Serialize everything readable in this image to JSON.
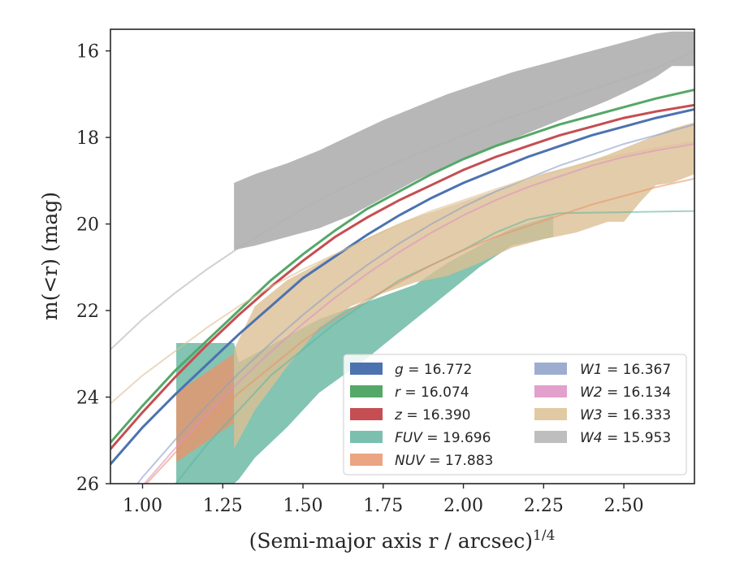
{
  "chart_data": {
    "type": "line",
    "xlabel": "(Semi-major axis r / arcsec)",
    "xlabel_exponent": "1/4",
    "ylabel": "m(<r) (mag)",
    "xlim": [
      0.9,
      2.72
    ],
    "ylim": [
      26,
      15.5
    ],
    "y_inverted": true,
    "grid": false,
    "legend_position": "lower-right",
    "xticks": [
      "1.00",
      "1.25",
      "1.50",
      "1.75",
      "2.00",
      "2.25",
      "2.50"
    ],
    "yticks": [
      "16",
      "18",
      "20",
      "22",
      "24",
      "26"
    ],
    "series": [
      {
        "name": "g = 16.772",
        "band": "g",
        "value": "16.772",
        "color": "#4c72b0",
        "x": [
          0.9,
          1.0,
          1.1,
          1.2,
          1.3,
          1.4,
          1.5,
          1.6,
          1.7,
          1.8,
          1.9,
          2.0,
          2.1,
          2.2,
          2.3,
          2.4,
          2.5,
          2.6,
          2.72
        ],
        "y": [
          25.55,
          24.7,
          23.95,
          23.25,
          22.55,
          21.9,
          21.25,
          20.75,
          20.25,
          19.8,
          19.4,
          19.05,
          18.75,
          18.45,
          18.2,
          17.95,
          17.75,
          17.55,
          17.35
        ],
        "band_x": [],
        "band_lo": [],
        "band_hi": []
      },
      {
        "name": "r = 16.074",
        "band": "r",
        "value": "16.074",
        "color": "#55a868",
        "x": [
          0.9,
          1.0,
          1.1,
          1.2,
          1.3,
          1.4,
          1.5,
          1.6,
          1.7,
          1.8,
          1.9,
          2.0,
          2.1,
          2.2,
          2.3,
          2.4,
          2.5,
          2.6,
          2.72
        ],
        "y": [
          25.05,
          24.2,
          23.4,
          22.7,
          22.0,
          21.3,
          20.7,
          20.15,
          19.65,
          19.25,
          18.85,
          18.5,
          18.2,
          17.95,
          17.7,
          17.5,
          17.3,
          17.1,
          16.9
        ],
        "band_x": [],
        "band_lo": [],
        "band_hi": []
      },
      {
        "name": "z = 16.390",
        "band": "z",
        "value": "16.390",
        "color": "#c44e52",
        "x": [
          0.9,
          1.0,
          1.1,
          1.2,
          1.3,
          1.4,
          1.5,
          1.6,
          1.7,
          1.8,
          1.9,
          2.0,
          2.1,
          2.2,
          2.3,
          2.4,
          2.5,
          2.6,
          2.72
        ],
        "y": [
          25.2,
          24.35,
          23.55,
          22.8,
          22.1,
          21.45,
          20.85,
          20.3,
          19.85,
          19.45,
          19.1,
          18.75,
          18.45,
          18.2,
          17.95,
          17.75,
          17.55,
          17.4,
          17.25
        ],
        "band_x": [],
        "band_lo": [],
        "band_hi": []
      },
      {
        "name": "FUV = 19.696",
        "band": "FUV",
        "value": "19.696",
        "color": "#64b5a0",
        "x": [
          1.05,
          1.2,
          1.4,
          1.6,
          1.8,
          2.0,
          2.1,
          2.2,
          2.3,
          2.72
        ],
        "y": [
          26.5,
          25.1,
          23.5,
          22.3,
          21.3,
          20.6,
          20.2,
          19.9,
          19.75,
          19.7
        ],
        "band_x": [
          1.105,
          1.285,
          1.3,
          1.35,
          1.45,
          1.55,
          1.7,
          1.85,
          1.95,
          2.05,
          2.15,
          2.28
        ],
        "band_lo": [
          26.0,
          26.0,
          25.9,
          25.4,
          24.7,
          23.9,
          23.1,
          22.2,
          21.6,
          21.0,
          20.5,
          20.3
        ],
        "band_hi": [
          22.75,
          22.75,
          23.2,
          23.0,
          22.6,
          22.2,
          21.8,
          21.4,
          20.9,
          20.5,
          20.1,
          19.8
        ]
      },
      {
        "name": "NUV = 17.883",
        "band": "NUV",
        "value": "17.883",
        "color": "#e8956c",
        "x": [
          0.9,
          1.0,
          1.1,
          1.2,
          1.3,
          1.4,
          1.5,
          1.6,
          1.7,
          1.8,
          1.9,
          2.0,
          2.1,
          2.2,
          2.3,
          2.4,
          2.5,
          2.6,
          2.72
        ],
        "y": [
          27.0,
          26.1,
          25.3,
          24.6,
          23.9,
          23.3,
          22.7,
          22.2,
          21.75,
          21.35,
          20.95,
          20.6,
          20.3,
          20.05,
          19.8,
          19.55,
          19.35,
          19.15,
          18.95
        ],
        "band_x": [
          1.105,
          1.285
        ],
        "band_lo": [
          25.5,
          24.6
        ],
        "band_hi": [
          23.9,
          23.0
        ]
      },
      {
        "name": "W1 = 16.367",
        "band": "W1",
        "value": "16.367",
        "color": "#8c9fc8",
        "x": [
          0.9,
          1.0,
          1.1,
          1.2,
          1.3,
          1.4,
          1.5,
          1.6,
          1.7,
          1.8,
          1.9,
          2.0,
          2.1,
          2.2,
          2.3,
          2.4,
          2.5,
          2.6,
          2.72
        ],
        "y": [
          26.8,
          25.85,
          25.0,
          24.2,
          23.45,
          22.75,
          22.1,
          21.5,
          20.95,
          20.45,
          20.0,
          19.6,
          19.25,
          18.95,
          18.65,
          18.4,
          18.15,
          17.95,
          17.7
        ],
        "band_x": [],
        "band_lo": [],
        "band_hi": []
      },
      {
        "name": "W2 = 16.134",
        "band": "W2",
        "value": "16.134",
        "color": "#dd8fc4",
        "x": [
          0.9,
          1.0,
          1.1,
          1.2,
          1.3,
          1.4,
          1.5,
          1.6,
          1.7,
          1.8,
          1.9,
          2.0,
          2.1,
          2.2,
          2.3,
          2.4,
          2.5,
          2.6,
          2.72
        ],
        "y": [
          27.0,
          26.05,
          25.2,
          24.4,
          23.65,
          22.95,
          22.3,
          21.7,
          21.15,
          20.65,
          20.2,
          19.8,
          19.45,
          19.15,
          18.9,
          18.65,
          18.45,
          18.3,
          18.15
        ],
        "band_x": [],
        "band_lo": [],
        "band_hi": []
      },
      {
        "name": "W3 = 16.333",
        "band": "W3",
        "value": "16.333",
        "color": "#dcbf94",
        "x": [
          0.9,
          1.0,
          1.1,
          1.2,
          1.3,
          1.4,
          1.5,
          1.6,
          1.7,
          1.8,
          1.9,
          2.0,
          2.1,
          2.2,
          2.3,
          2.4,
          2.5,
          2.6,
          2.72
        ],
        "y": [
          24.15,
          23.5,
          22.95,
          22.4,
          21.9,
          21.45,
          21.05,
          20.7,
          20.35,
          20.0,
          19.7,
          19.45,
          19.2,
          18.95,
          18.75,
          18.55,
          18.4,
          18.25,
          18.1
        ],
        "band_x": [
          1.285,
          1.35,
          1.45,
          1.55,
          1.65,
          1.75,
          1.85,
          1.95,
          2.05,
          2.15,
          2.25,
          2.35,
          2.45,
          2.5,
          2.55,
          2.6,
          2.65,
          2.72
        ],
        "band_lo": [
          25.2,
          24.3,
          23.3,
          22.4,
          21.9,
          21.6,
          21.35,
          21.2,
          20.9,
          20.55,
          20.35,
          20.2,
          19.95,
          19.95,
          19.5,
          19.1,
          19.05,
          18.85
        ],
        "band_hi": [
          22.9,
          21.9,
          21.3,
          20.9,
          20.5,
          20.15,
          19.85,
          19.6,
          19.35,
          19.1,
          18.85,
          18.65,
          18.4,
          18.25,
          18.1,
          17.95,
          17.8,
          17.65
        ]
      },
      {
        "name": "W4 = 15.953",
        "band": "W4",
        "value": "15.953",
        "color": "#b3b3b3",
        "x": [
          0.9,
          1.0,
          1.1,
          1.2,
          1.3,
          1.4,
          1.5,
          1.6,
          1.7,
          1.8,
          1.9,
          2.0,
          2.1,
          2.2,
          2.3,
          2.4,
          2.5,
          2.6,
          2.72
        ],
        "y": [
          22.9,
          22.2,
          21.6,
          21.05,
          20.55,
          20.1,
          19.65,
          19.25,
          18.9,
          18.55,
          18.25,
          17.95,
          17.65,
          17.4,
          17.15,
          16.9,
          16.65,
          16.4,
          16.0
        ],
        "band_x": [
          1.285,
          1.35,
          1.45,
          1.55,
          1.65,
          1.75,
          1.85,
          1.95,
          2.05,
          2.15,
          2.25,
          2.35,
          2.45,
          2.55,
          2.6,
          2.65,
          2.72
        ],
        "band_lo": [
          20.6,
          20.5,
          20.3,
          20.1,
          19.8,
          19.4,
          19.0,
          18.65,
          18.35,
          18.05,
          17.75,
          17.45,
          17.15,
          16.8,
          16.6,
          16.35,
          16.35
        ],
        "band_hi": [
          19.05,
          18.85,
          18.6,
          18.3,
          17.95,
          17.6,
          17.3,
          17.0,
          16.75,
          16.5,
          16.3,
          16.1,
          15.9,
          15.7,
          15.6,
          15.55,
          15.55
        ]
      }
    ]
  }
}
